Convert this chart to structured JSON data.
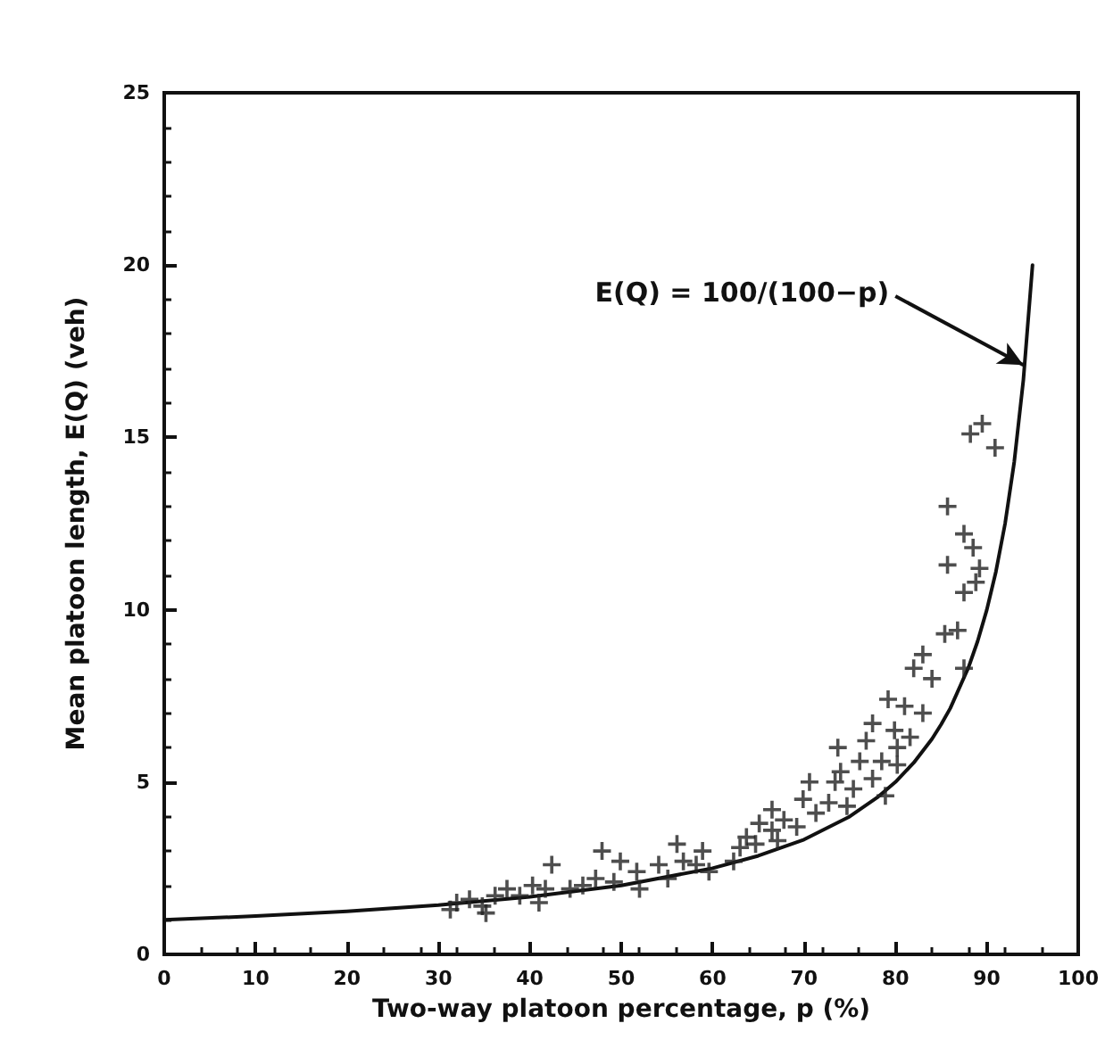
{
  "chart_data": {
    "type": "scatter",
    "xlabel": "Two-way platoon percentage, p (%)",
    "ylabel": "Mean platoon length, E(Q) (veh)",
    "xlim": [
      0,
      100
    ],
    "xticks": [
      0,
      10,
      20,
      30,
      40,
      50,
      60,
      70,
      80,
      90,
      100
    ],
    "ylim": [
      0,
      25
    ],
    "yticks": [
      0,
      5,
      10,
      15,
      20,
      25
    ],
    "grid": false,
    "annotations": [
      {
        "text": "E(Q) = 100/(100−p)",
        "x": 94,
        "y": 17.1
      }
    ],
    "series": [
      {
        "type": "line",
        "color": "#111111",
        "marker": "none",
        "line_style": "solid",
        "x": [
          0,
          10,
          20,
          30,
          40,
          50,
          60,
          65,
          70,
          75,
          78,
          80,
          82,
          84,
          85,
          86,
          88,
          89,
          90,
          91,
          92,
          93,
          94,
          95
        ],
        "values": [
          1,
          1.11,
          1.25,
          1.43,
          1.67,
          2,
          2.5,
          2.86,
          3.33,
          4,
          4.55,
          5,
          5.56,
          6.25,
          6.67,
          7.14,
          8.33,
          9.09,
          10,
          11.11,
          12.5,
          14.29,
          16.67,
          20
        ]
      },
      {
        "color": "#222222",
        "marker": "cross",
        "x": [
          88.2,
          89.5,
          90.9,
          85.7,
          87.5,
          88.5,
          85.7,
          89.2,
          87.5,
          88.8,
          86.8,
          85.4,
          87.5,
          83,
          82,
          84,
          79.2,
          81,
          83,
          77.5,
          79.9,
          81.6,
          73.7,
          76.1,
          78.5,
          80.2,
          70.6,
          73.4,
          75.4,
          77.5,
          78.9,
          69.9,
          72.7,
          74.7,
          66.5,
          67.8,
          69.2,
          65.1,
          67.1,
          63.7,
          63,
          64.7,
          58.9,
          56.8,
          56.1,
          54.1,
          58.2,
          55.1,
          47.9,
          49.9,
          51.7,
          52,
          49.2,
          45.8,
          44.4,
          42.4,
          41.7,
          40.3,
          38.9,
          37.5,
          36.2,
          34.8,
          33.4,
          32,
          31.3,
          35.2,
          41,
          47.2,
          59.6,
          62.3,
          66.5,
          71.3,
          74,
          76.8,
          80.2
        ],
        "values": [
          15.1,
          15.4,
          14.7,
          13,
          12.2,
          11.8,
          11.3,
          11.2,
          10.5,
          10.8,
          9.4,
          9.3,
          8.3,
          8.7,
          8.3,
          8,
          7.4,
          7.2,
          7,
          6.7,
          6.5,
          6.3,
          6,
          5.6,
          5.6,
          5.5,
          5,
          5,
          4.8,
          5.1,
          4.6,
          4.5,
          4.4,
          4.3,
          4.2,
          3.9,
          3.7,
          3.8,
          3.3,
          3.4,
          3.1,
          3.2,
          3,
          2.7,
          3.2,
          2.6,
          2.6,
          2.2,
          3,
          2.7,
          2.4,
          1.9,
          2.1,
          2,
          1.9,
          2.6,
          1.9,
          2,
          1.7,
          1.9,
          1.7,
          1.4,
          1.6,
          1.5,
          1.3,
          1.2,
          1.5,
          2.2,
          2.4,
          2.7,
          3.6,
          4.1,
          5.3,
          6.2,
          6
        ]
      }
    ]
  }
}
